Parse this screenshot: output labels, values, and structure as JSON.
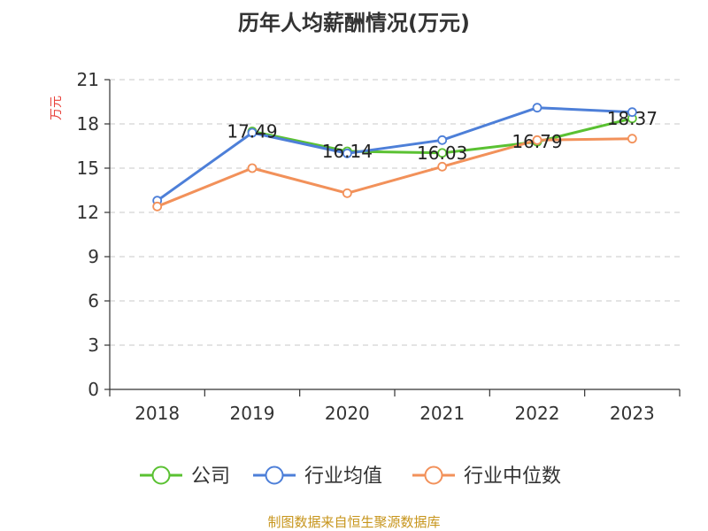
{
  "chart_data": {
    "type": "line",
    "title": "历年人均薪酬情况(万元)",
    "ylabel": "万元",
    "xlabel": "",
    "categories": [
      "2018",
      "2019",
      "2020",
      "2021",
      "2022",
      "2023"
    ],
    "ylim": [
      0,
      21
    ],
    "yticks": [
      0,
      3,
      6,
      9,
      12,
      15,
      18,
      21
    ],
    "grid": true,
    "legend": "bottom",
    "series": [
      {
        "name": "公司",
        "color": "#5ac132",
        "values": [
          null,
          17.49,
          16.14,
          16.03,
          16.79,
          18.37
        ]
      },
      {
        "name": "行业均值",
        "color": "#4d7fd8",
        "values": [
          12.8,
          17.4,
          16.0,
          16.9,
          19.1,
          18.8
        ]
      },
      {
        "name": "行业中位数",
        "color": "#f2915a",
        "values": [
          12.4,
          15.0,
          13.3,
          15.1,
          16.9,
          17.0
        ]
      }
    ],
    "data_labels": [
      {
        "series": 0,
        "index": 1,
        "text": "17.49"
      },
      {
        "series": 0,
        "index": 2,
        "text": "16.14"
      },
      {
        "series": 0,
        "index": 3,
        "text": "16.03"
      },
      {
        "series": 0,
        "index": 4,
        "text": "16.79"
      },
      {
        "series": 0,
        "index": 5,
        "text": "18.37"
      }
    ],
    "source": "制图数据来自恒生聚源数据库"
  }
}
